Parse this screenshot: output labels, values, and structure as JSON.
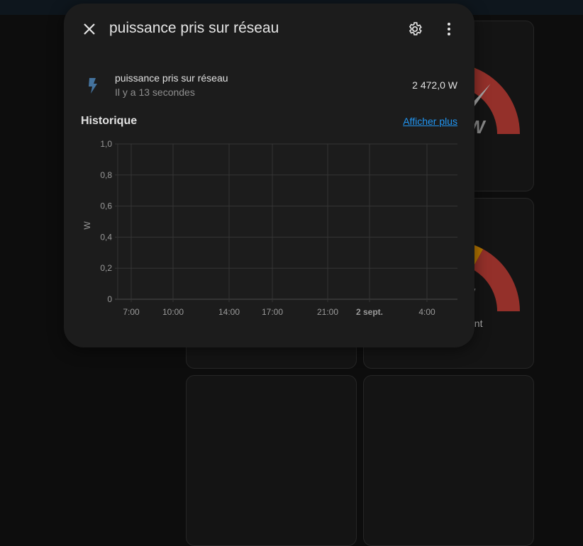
{
  "dialog": {
    "title": "puissance pris sur réseau",
    "close_icon": "close-icon",
    "settings_icon": "gear-icon",
    "menu_icon": "dots-vertical-icon",
    "entity": {
      "icon": "lightning-bolt-icon",
      "name": "puissance pris sur réseau",
      "last_changed": "Il y a 13 secondes",
      "state": "2 472,0 W"
    },
    "history": {
      "title": "Historique",
      "more_link": "Afficher plus"
    }
  },
  "background": {
    "gauges": [
      {
        "value_fragment": "W",
        "name_fragment": "",
        "severity_split": 0.62,
        "needle": 0.72
      },
      {
        "value_fragment": "/",
        "name_fragment": "ant",
        "severity_split": 0.66
      }
    ],
    "colors": {
      "warning": "#b37400",
      "critical": "#94302a",
      "needle": "#a8a8a8"
    }
  },
  "chart_data": {
    "type": "line",
    "ylabel": "W",
    "ylim": [
      0,
      1
    ],
    "y_ticks": [
      "1,0",
      "0,8",
      "0,6",
      "0,4",
      "0,2",
      "0"
    ],
    "x_ticks": [
      "7:00",
      "10:00",
      "14:00",
      "17:00",
      "21:00",
      "2 sept.",
      "4:00"
    ],
    "grid": true,
    "series": []
  }
}
